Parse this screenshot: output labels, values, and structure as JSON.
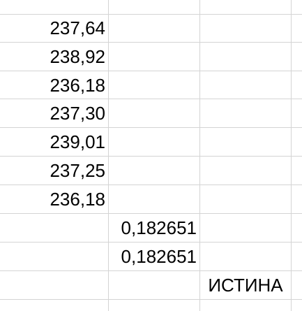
{
  "sheet": {
    "column_a_values": [
      "237,64",
      "238,92",
      "236,18",
      "237,30",
      "239,01",
      "237,25",
      "236,18"
    ],
    "column_b_values": [
      "0,182651",
      "0,182651"
    ],
    "column_c_value": "ИСТИНА"
  }
}
